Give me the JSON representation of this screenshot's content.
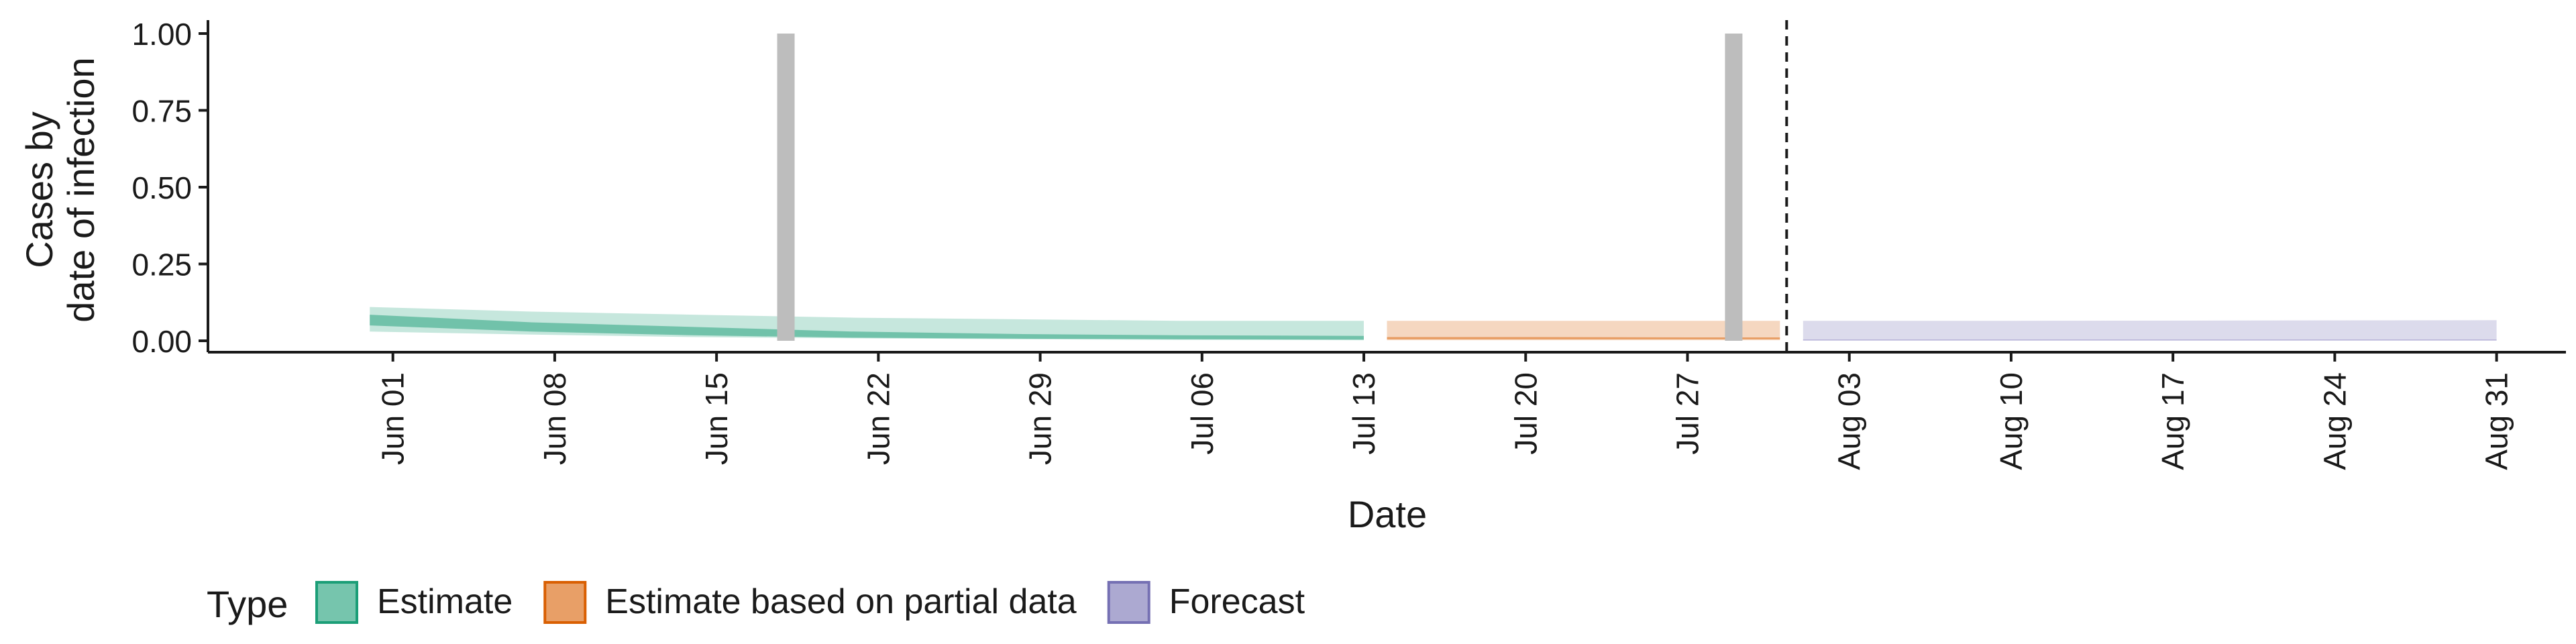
{
  "chart_data": {
    "type": "area",
    "title": "",
    "xlabel": "Date",
    "ylabel_lines": [
      "Cases by",
      "date of infection"
    ],
    "ylim": [
      0,
      1
    ],
    "y_ticks": [
      "0.00",
      "0.25",
      "0.50",
      "0.75",
      "1.00"
    ],
    "y_tick_values": [
      0,
      0.25,
      0.5,
      0.75,
      1.0
    ],
    "xlim": [
      "2020-05-24",
      "2020-09-03"
    ],
    "x_ticks": [
      {
        "date": "2020-06-01",
        "label": "Jun 01"
      },
      {
        "date": "2020-06-08",
        "label": "Jun 08"
      },
      {
        "date": "2020-06-15",
        "label": "Jun 15"
      },
      {
        "date": "2020-06-22",
        "label": "Jun 22"
      },
      {
        "date": "2020-06-29",
        "label": "Jun 29"
      },
      {
        "date": "2020-07-06",
        "label": "Jul 06"
      },
      {
        "date": "2020-07-13",
        "label": "Jul 13"
      },
      {
        "date": "2020-07-20",
        "label": "Jul 20"
      },
      {
        "date": "2020-07-27",
        "label": "Jul 27"
      },
      {
        "date": "2020-08-03",
        "label": "Aug 03"
      },
      {
        "date": "2020-08-10",
        "label": "Aug 10"
      },
      {
        "date": "2020-08-17",
        "label": "Aug 17"
      },
      {
        "date": "2020-08-24",
        "label": "Aug 24"
      },
      {
        "date": "2020-08-31",
        "label": "Aug 31"
      }
    ],
    "grid": false,
    "legend_position": "bottom",
    "legend_title": "Type",
    "series": [
      {
        "name": "Estimate",
        "color": "#1b9e77",
        "x": [
          "2020-05-31",
          "2020-06-07",
          "2020-06-14",
          "2020-06-21",
          "2020-06-28",
          "2020-07-05",
          "2020-07-13"
        ],
        "outer_lower": [
          0.03,
          0.02,
          0.012,
          0.008,
          0.005,
          0.003,
          0.002
        ],
        "outer_upper": [
          0.11,
          0.095,
          0.085,
          0.075,
          0.07,
          0.065,
          0.065
        ],
        "inner_lower": [
          0.05,
          0.03,
          0.018,
          0.01,
          0.007,
          0.005,
          0.004
        ],
        "inner_upper": [
          0.085,
          0.06,
          0.045,
          0.03,
          0.022,
          0.018,
          0.016
        ]
      },
      {
        "name": "Estimate based on partial data",
        "color": "#d95f02",
        "x": [
          "2020-07-14",
          "2020-07-20",
          "2020-07-27",
          "2020-07-31"
        ],
        "outer_lower": [
          0.002,
          0.002,
          0.002,
          0.002
        ],
        "outer_upper": [
          0.065,
          0.065,
          0.065,
          0.065
        ],
        "inner_lower": [
          0.005,
          0.005,
          0.005,
          0.005
        ],
        "inner_upper": [
          0.012,
          0.012,
          0.011,
          0.011
        ]
      },
      {
        "name": "Forecast",
        "color": "#7570b3",
        "x": [
          "2020-08-01",
          "2020-08-10",
          "2020-08-20",
          "2020-08-31"
        ],
        "outer_lower": [
          0.001,
          0.001,
          0.001,
          0.001
        ],
        "outer_upper": [
          0.065,
          0.065,
          0.066,
          0.067
        ],
        "inner_lower": [
          0.001,
          0.001,
          0.001,
          0.001
        ],
        "inner_upper": [
          0.004,
          0.004,
          0.004,
          0.004
        ]
      }
    ],
    "markers": [
      {
        "type": "bar",
        "date": "2020-06-18",
        "value": 1.0,
        "color": "#bdbdbd"
      },
      {
        "type": "bar",
        "date": "2020-07-29",
        "value": 1.0,
        "color": "#bdbdbd"
      }
    ],
    "vline": {
      "date": "2020-07-31",
      "style": "dashed",
      "color": "#1a1a1a"
    }
  }
}
